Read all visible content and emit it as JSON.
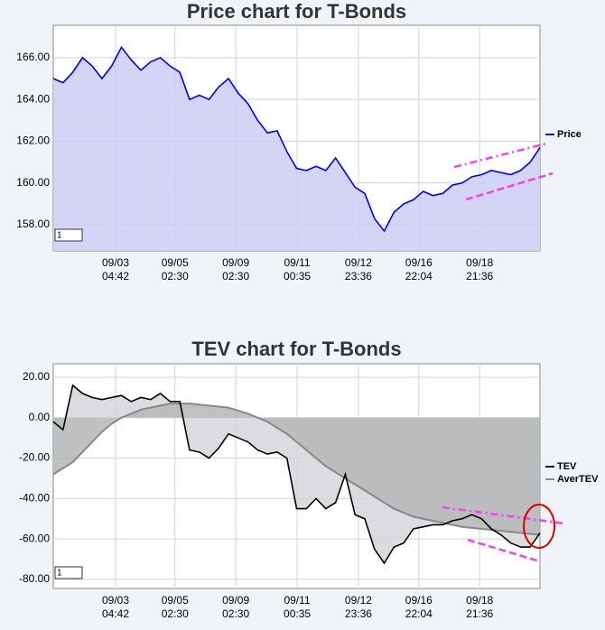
{
  "chart_data": [
    {
      "type": "line",
      "title": "Price chart for T-Bonds",
      "x": [
        0,
        2,
        4,
        6,
        8,
        10,
        12,
        14,
        16,
        18,
        20,
        22,
        24,
        26,
        28,
        30,
        32,
        34,
        36,
        38,
        40,
        42,
        44,
        46,
        48,
        50,
        52,
        54,
        56,
        58,
        60,
        62,
        64,
        66,
        68,
        70,
        72,
        74,
        76,
        78,
        80,
        82,
        84,
        86,
        88,
        90,
        92,
        94,
        96,
        98,
        100
      ],
      "series": [
        {
          "name": "Price",
          "color": "#0000ee",
          "fill": "#ccccf6",
          "values": [
            165.0,
            164.8,
            165.3,
            166.0,
            165.6,
            165.0,
            165.6,
            166.5,
            165.9,
            165.4,
            165.8,
            166.0,
            165.6,
            165.3,
            164.0,
            164.2,
            164.0,
            164.6,
            165.0,
            164.3,
            163.8,
            163.0,
            162.4,
            162.5,
            161.5,
            160.7,
            160.6,
            160.8,
            160.6,
            161.2,
            160.5,
            159.8,
            159.5,
            158.3,
            157.7,
            158.6,
            159.0,
            159.2,
            159.6,
            159.4,
            159.5,
            159.9,
            160.0,
            160.3,
            160.4,
            160.6,
            160.5,
            160.4,
            160.6,
            161.0,
            161.7
          ]
        }
      ],
      "xlim": [
        0,
        100
      ],
      "xticks": [
        {
          "value": 12.8,
          "label": "09/03 04:42"
        },
        {
          "value": 25,
          "label": "09/05 02:30"
        },
        {
          "value": 37.5,
          "label": "09/09 02:30"
        },
        {
          "value": 50.1,
          "label": "09/11 00:35"
        },
        {
          "value": 62.7,
          "label": "09/12 23:36"
        },
        {
          "value": 75.1,
          "label": "09/16 22:04"
        },
        {
          "value": 87.6,
          "label": "09/18 21:36"
        }
      ],
      "ylim": [
        156.75,
        167.55
      ],
      "yticks": [
        {
          "value": 158,
          "label": "158.00"
        },
        {
          "value": 160,
          "label": "160.00"
        },
        {
          "value": 162,
          "label": "162.00"
        },
        {
          "value": 164,
          "label": "164.00"
        },
        {
          "value": 166,
          "label": "166.00"
        }
      ],
      "grid": true,
      "legend": "right",
      "panel_label": "1"
    },
    {
      "type": "line",
      "title": "TEV chart for T-Bonds",
      "x": [
        0,
        2,
        4,
        6,
        8,
        10,
        12,
        14,
        16,
        18,
        20,
        22,
        24,
        26,
        28,
        30,
        32,
        34,
        36,
        38,
        40,
        42,
        44,
        46,
        48,
        50,
        52,
        54,
        56,
        58,
        60,
        62,
        64,
        66,
        68,
        70,
        72,
        74,
        76,
        78,
        80,
        82,
        84,
        86,
        88,
        90,
        92,
        94,
        96,
        98,
        100
      ],
      "series": [
        {
          "name": "TEV",
          "color": "#000000",
          "fill": "#d4d6d9",
          "values": [
            -2,
            -6,
            16,
            12,
            10,
            9,
            10,
            11,
            8,
            10,
            9,
            12,
            8,
            8,
            -16,
            -17,
            -20,
            -15,
            -8,
            -10,
            -12,
            -16,
            -18,
            -17,
            -20,
            -45,
            -45,
            -40,
            -45,
            -42,
            -28,
            -48,
            -50,
            -65,
            -72,
            -64,
            -62,
            -55,
            -54,
            -53,
            -53,
            -51,
            -50,
            -48,
            -50,
            -55,
            -58,
            -62,
            -64,
            -64,
            -57
          ]
        },
        {
          "name": "AverTEV",
          "color": "#888888",
          "fill": "#b4b6b9",
          "values": [
            -28,
            -25,
            -22,
            -17,
            -12,
            -7,
            -3,
            0,
            2,
            4,
            5,
            6,
            7,
            7,
            7,
            6.5,
            6,
            5.5,
            5,
            3.5,
            2,
            0,
            -2,
            -5,
            -8,
            -12,
            -16,
            -20,
            -24,
            -27,
            -30,
            -33,
            -36,
            -39,
            -42,
            -45,
            -47,
            -49,
            -50,
            -51,
            -52,
            -53,
            -54,
            -54.5,
            -55,
            -55.5,
            -56,
            -56.5,
            -57,
            -57.5,
            -58
          ]
        }
      ],
      "xlim": [
        0,
        100
      ],
      "xticks": [
        {
          "value": 12.8,
          "label": "09/03 04:42"
        },
        {
          "value": 25,
          "label": "09/05 02:30"
        },
        {
          "value": 37.5,
          "label": "09/09 02:30"
        },
        {
          "value": 50.1,
          "label": "09/11 00:35"
        },
        {
          "value": 62.7,
          "label": "09/12 23:36"
        },
        {
          "value": 75.1,
          "label": "09/16 22:04"
        },
        {
          "value": 87.6,
          "label": "09/18 21:36"
        }
      ],
      "ylim": [
        -84.5,
        26.7
      ],
      "yticks": [
        {
          "value": 20,
          "label": "20.00"
        },
        {
          "value": 0,
          "label": "0.00"
        },
        {
          "value": -20,
          "label": "-20.00"
        },
        {
          "value": -40,
          "label": "-40.00"
        },
        {
          "value": -60,
          "label": "-60.00"
        },
        {
          "value": -80,
          "label": "-80.00"
        }
      ],
      "grid": true,
      "legend": "right",
      "panel_label": "1"
    }
  ]
}
